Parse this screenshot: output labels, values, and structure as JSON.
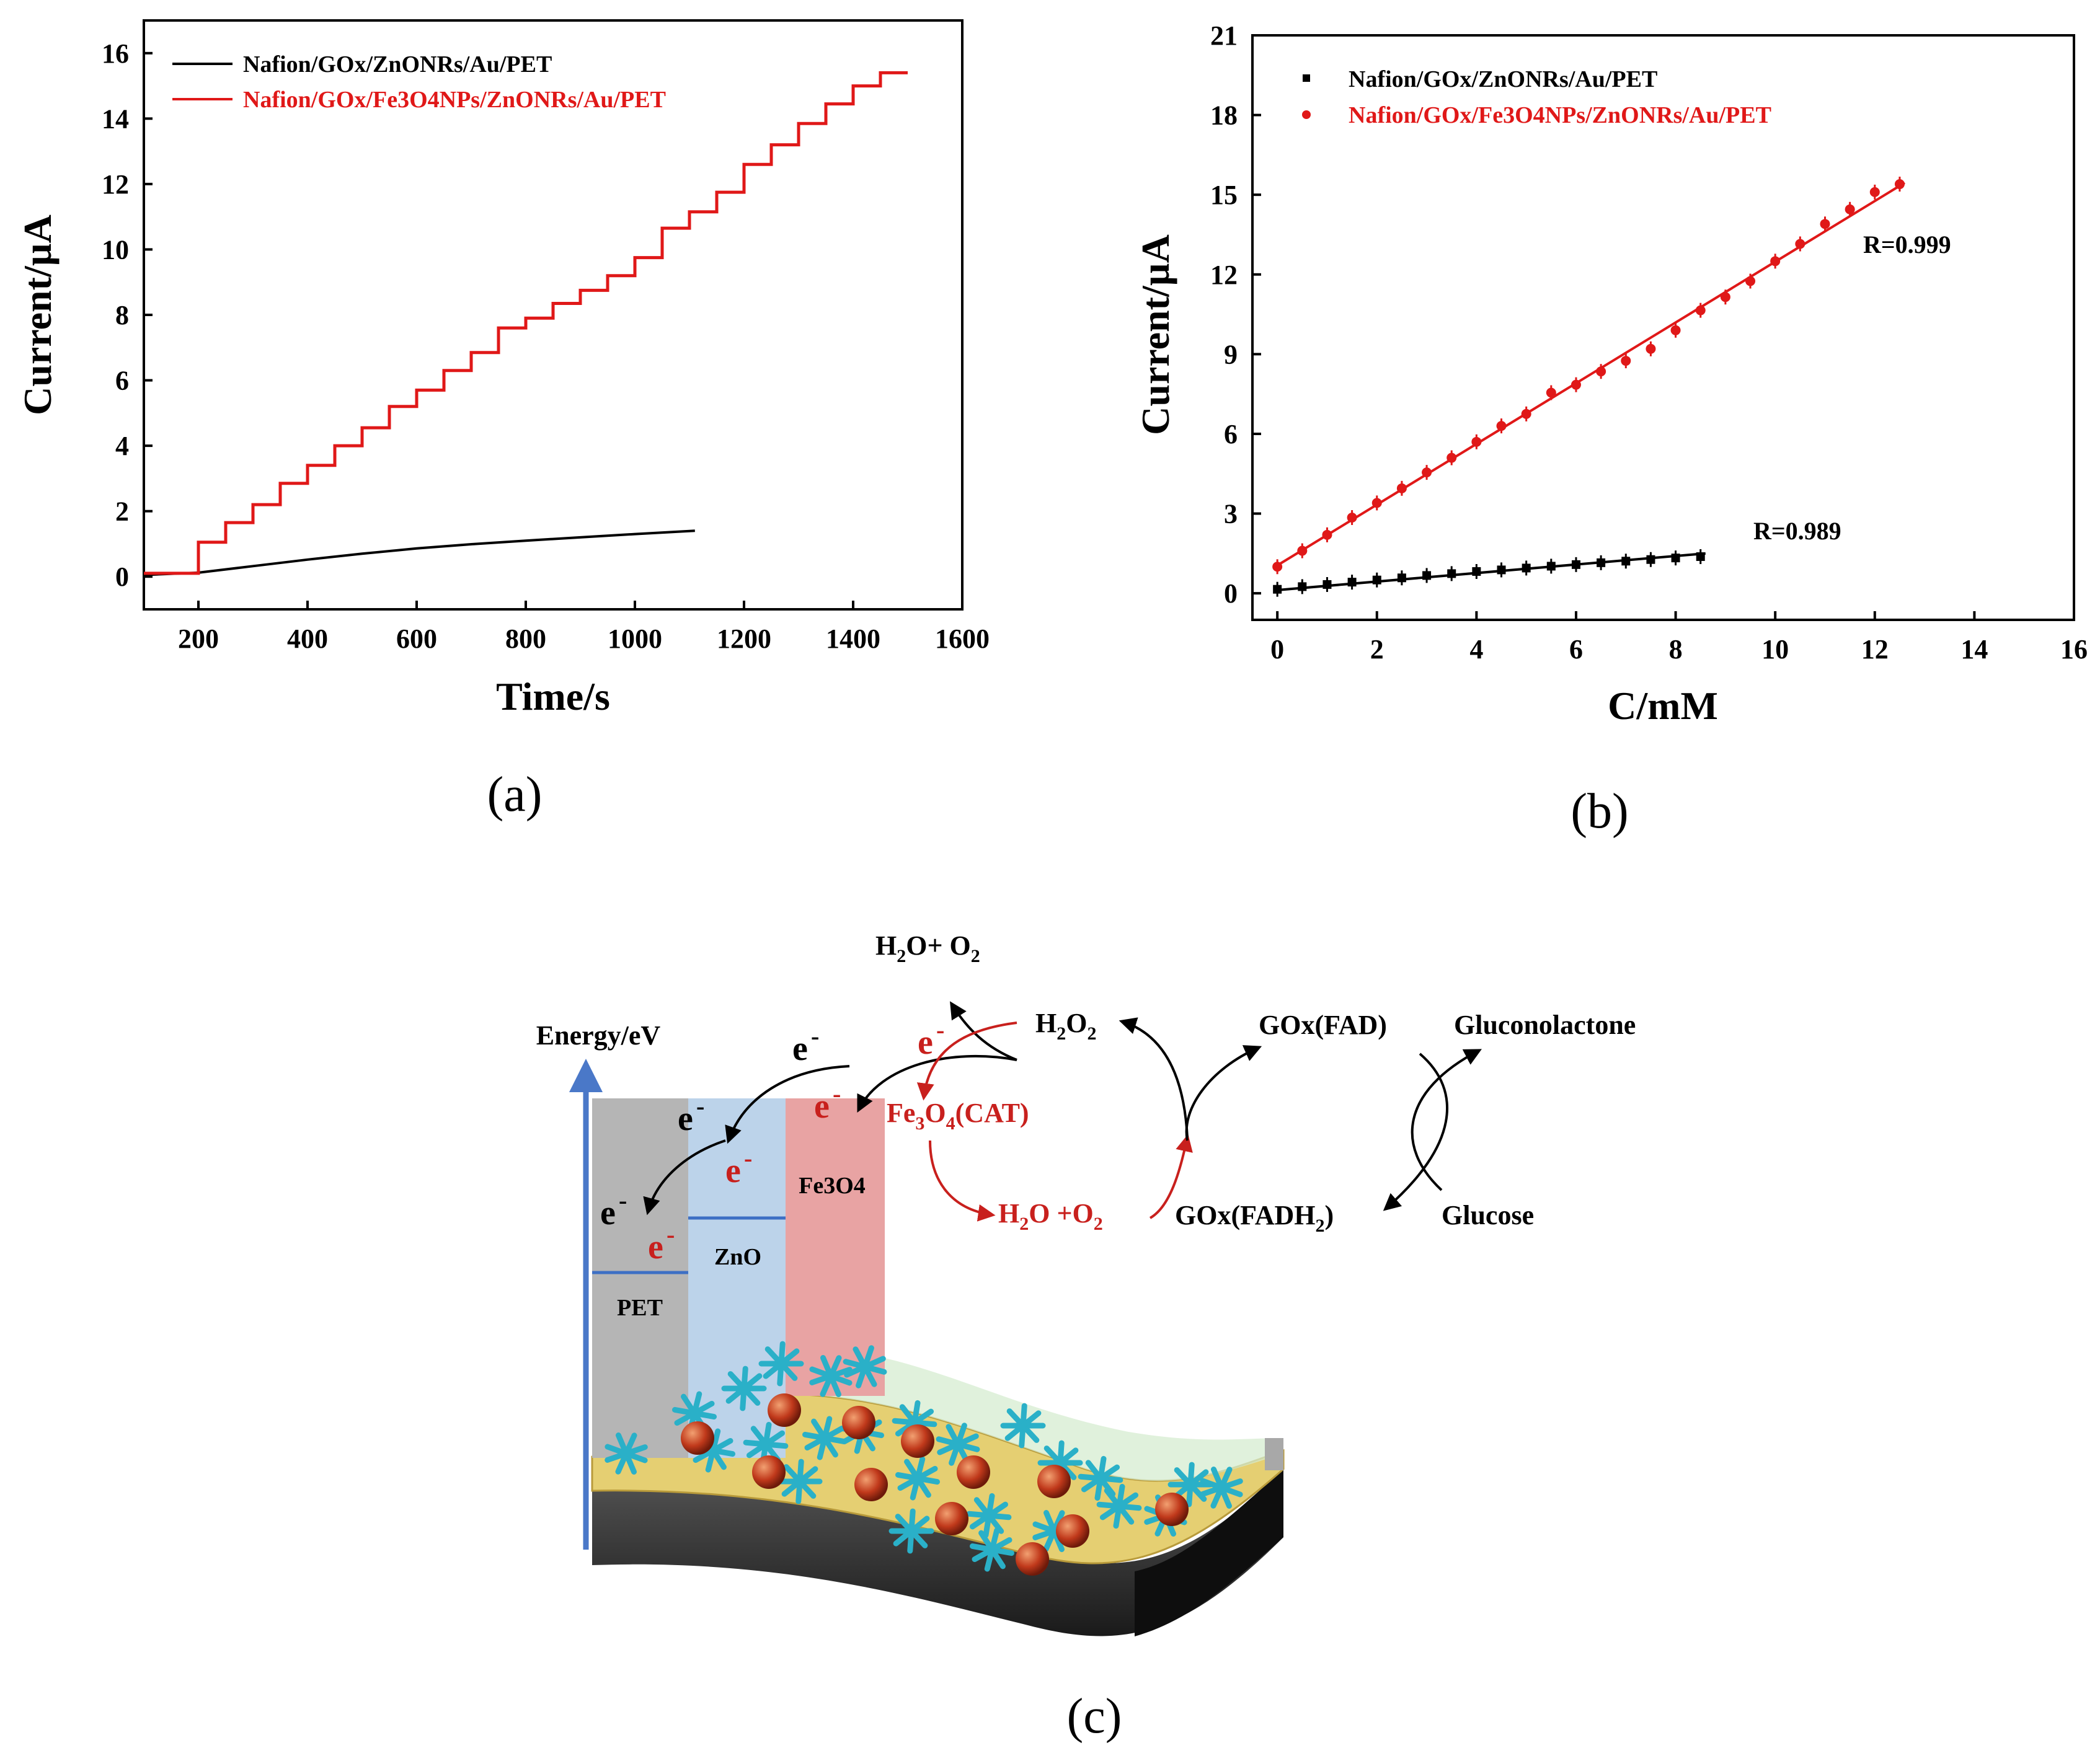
{
  "colors": {
    "black_series": "#000000",
    "red_series": "#e01818",
    "arrow_red": "#c8201d",
    "energy_axis": "#4a78c8",
    "pet": "#b5b5b5",
    "zno": "#bcd3ea",
    "fe3o4": "#e8a3a3",
    "nps": "#c0391b",
    "rods": "#2ab0c8",
    "film_yellow": "#e5cf72",
    "substrate": "#333333"
  },
  "chart_data": [
    {
      "id": "a",
      "type": "line",
      "xlabel": "Time/s",
      "ylabel": "Current/µA",
      "xlim": [
        100,
        1600
      ],
      "ylim": [
        -1,
        17
      ],
      "xticks": [
        200,
        400,
        600,
        800,
        1000,
        1200,
        1400,
        1600
      ],
      "yticks": [
        0,
        2,
        4,
        6,
        8,
        10,
        12,
        14,
        16
      ],
      "legend_position": "top-left",
      "series": [
        {
          "name": "Nafion/GOx/ZnONRs/Au/PET",
          "color": "#000000",
          "x": [
            100,
            200,
            300,
            400,
            500,
            600,
            700,
            800,
            900,
            1000,
            1110
          ],
          "y": [
            0.05,
            0.12,
            0.32,
            0.52,
            0.7,
            0.86,
            0.99,
            1.1,
            1.2,
            1.3,
            1.4
          ]
        },
        {
          "name": "Nafion/GOx/Fe3O4NPs/ZnONRs/Au/PET",
          "color": "#e01818",
          "step_start": 200,
          "step_interval": 50,
          "baseline": 0.1,
          "x_end": 1500,
          "levels": [
            1.05,
            1.65,
            2.2,
            2.85,
            3.4,
            4.0,
            4.55,
            5.2,
            5.7,
            6.3,
            6.85,
            7.6,
            7.9,
            8.35,
            8.75,
            9.2,
            9.75,
            10.65,
            11.15,
            11.75,
            12.6,
            13.2,
            13.85,
            14.45,
            15.0,
            15.4
          ]
        }
      ]
    },
    {
      "id": "b",
      "type": "scatter",
      "xlabel": "C/mM",
      "ylabel": "Current/µA",
      "xlim": [
        -0.5,
        16
      ],
      "ylim": [
        -1,
        21
      ],
      "xticks": [
        0,
        2,
        4,
        6,
        8,
        10,
        12,
        14,
        16
      ],
      "yticks": [
        0,
        3,
        6,
        9,
        12,
        15,
        18,
        21
      ],
      "legend_position": "top-left",
      "series": [
        {
          "name": "Nafion/GOx/ZnONRs/Au/PET",
          "color": "#000000",
          "marker": "square",
          "x": [
            0,
            0.5,
            1,
            1.5,
            2,
            2.5,
            3,
            3.5,
            4,
            4.5,
            5,
            5.5,
            6,
            6.5,
            7,
            7.5,
            8,
            8.5
          ],
          "y": [
            0.15,
            0.25,
            0.33,
            0.42,
            0.5,
            0.58,
            0.67,
            0.74,
            0.82,
            0.88,
            0.95,
            1.02,
            1.08,
            1.15,
            1.21,
            1.27,
            1.33,
            1.38
          ],
          "fit": {
            "x": [
              0,
              8.6
            ],
            "y": [
              0.12,
              1.5
            ]
          },
          "annotation": "R=0.989"
        },
        {
          "name": "Nafion/GOx/Fe3O4NPs/ZnONRs/Au/PET",
          "color": "#e01818",
          "marker": "circle",
          "x": [
            0,
            0.5,
            1,
            1.5,
            2,
            2.5,
            3,
            3.5,
            4,
            4.5,
            5,
            5.5,
            6,
            6.5,
            7,
            7.5,
            8,
            8.5,
            9,
            9.5,
            10,
            10.5,
            11,
            11.5,
            12,
            12.5
          ],
          "y": [
            1.0,
            1.6,
            2.2,
            2.85,
            3.4,
            3.95,
            4.55,
            5.1,
            5.7,
            6.3,
            6.75,
            7.55,
            7.85,
            8.35,
            8.75,
            9.2,
            9.9,
            10.65,
            11.15,
            11.75,
            12.5,
            13.15,
            13.9,
            14.45,
            15.1,
            15.4
          ],
          "fit": {
            "x": [
              0,
              12.6
            ],
            "y": [
              1.05,
              15.45
            ]
          },
          "annotation": "R=0.999"
        }
      ]
    }
  ],
  "panel_labels": {
    "a": "(a)",
    "b": "(b)",
    "c": "(c)"
  },
  "diagram": {
    "energy_axis_label": "Energy/eV",
    "layers": {
      "pet": "PET",
      "zno": "ZnO",
      "fe3o4_top": "Fe3O4"
    },
    "electron": "e",
    "electron_charge": "-",
    "h2o_o2_top": {
      "a": "H",
      "b": "2",
      "c": "O+ O",
      "d": "2"
    },
    "h2o2": {
      "a": "H",
      "b": "2",
      "c": "O",
      "d": "2"
    },
    "fe3o4_cat": {
      "a": "Fe",
      "b": "3",
      "c": "O",
      "d": "4",
      "e": "(CAT)"
    },
    "h2o_o2_bottom": {
      "a": "H",
      "b": "2",
      "c": "O +O",
      "d": "2"
    },
    "gox_fad": "GOx(FAD)",
    "gox_fadh2": {
      "a": "GOx(FADH",
      "b": "2",
      "c": ")"
    },
    "gluconolactone": "Gluconolactone",
    "glucose": "Glucose"
  }
}
